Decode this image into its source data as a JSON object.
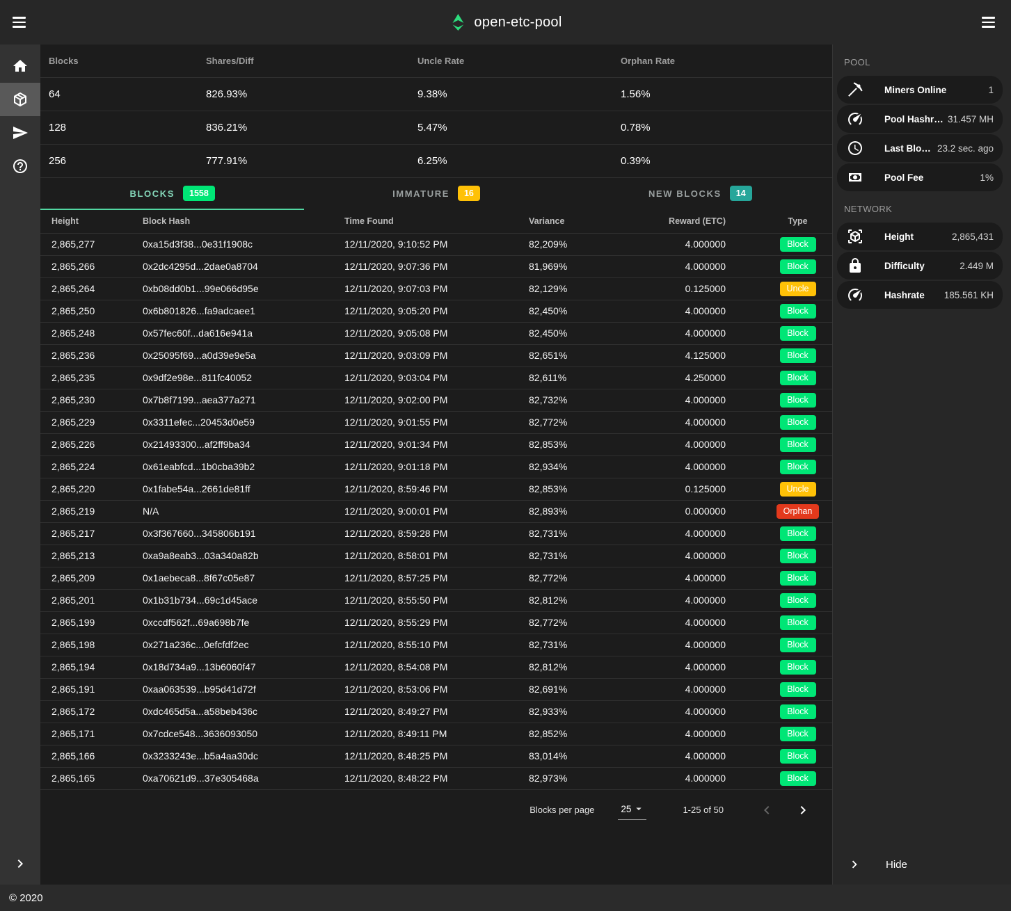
{
  "header": {
    "title": "open-etc-pool"
  },
  "nav_rail": {
    "items": [
      {
        "icon": "home-icon",
        "name": "home",
        "active": false
      },
      {
        "icon": "cube-icon",
        "name": "blocks",
        "active": true
      },
      {
        "icon": "send-icon",
        "name": "payments",
        "active": false
      },
      {
        "icon": "help-icon",
        "name": "help",
        "active": false
      }
    ]
  },
  "stats_table": {
    "headers": [
      "Blocks",
      "Shares/Diff",
      "Uncle Rate",
      "Orphan Rate"
    ],
    "rows": [
      {
        "blocks": "64",
        "shares": "826.93%",
        "uncle": "9.38%",
        "orphan": "1.56%"
      },
      {
        "blocks": "128",
        "shares": "836.21%",
        "uncle": "5.47%",
        "orphan": "0.78%"
      },
      {
        "blocks": "256",
        "shares": "777.91%",
        "uncle": "6.25%",
        "orphan": "0.39%"
      }
    ]
  },
  "tabs": [
    {
      "label": "BLOCKS",
      "count": "1558",
      "active": true,
      "badge_color": "#00e676",
      "name": "blocks"
    },
    {
      "label": "IMMATURE",
      "count": "16",
      "active": false,
      "badge_color": "#ffc107",
      "name": "immature"
    },
    {
      "label": "NEW BLOCKS",
      "count": "14",
      "active": false,
      "badge_color": "#26a69a",
      "name": "new-blocks"
    }
  ],
  "blocks_table": {
    "headers": [
      "Height",
      "Block Hash",
      "Time Found",
      "Variance",
      "Reward (ETC)",
      "Type"
    ],
    "rows": [
      {
        "height": "2,865,277",
        "hash": "0xa15d3f38...0e31f1908c",
        "time": "12/11/2020, 9:10:52 PM",
        "variance": "82,209%",
        "reward": "4.000000",
        "type": "Block"
      },
      {
        "height": "2,865,266",
        "hash": "0x2dc4295d...2dae0a8704",
        "time": "12/11/2020, 9:07:36 PM",
        "variance": "81,969%",
        "reward": "4.000000",
        "type": "Block"
      },
      {
        "height": "2,865,264",
        "hash": "0xb08dd0b1...99e066d95e",
        "time": "12/11/2020, 9:07:03 PM",
        "variance": "82,129%",
        "reward": "0.125000",
        "type": "Uncle"
      },
      {
        "height": "2,865,250",
        "hash": "0x6b801826...fa9adcaee1",
        "time": "12/11/2020, 9:05:20 PM",
        "variance": "82,450%",
        "reward": "4.000000",
        "type": "Block"
      },
      {
        "height": "2,865,248",
        "hash": "0x57fec60f...da616e941a",
        "time": "12/11/2020, 9:05:08 PM",
        "variance": "82,450%",
        "reward": "4.000000",
        "type": "Block"
      },
      {
        "height": "2,865,236",
        "hash": "0x25095f69...a0d39e9e5a",
        "time": "12/11/2020, 9:03:09 PM",
        "variance": "82,651%",
        "reward": "4.125000",
        "type": "Block"
      },
      {
        "height": "2,865,235",
        "hash": "0x9df2e98e...811fc40052",
        "time": "12/11/2020, 9:03:04 PM",
        "variance": "82,611%",
        "reward": "4.250000",
        "type": "Block"
      },
      {
        "height": "2,865,230",
        "hash": "0x7b8f7199...aea377a271",
        "time": "12/11/2020, 9:02:00 PM",
        "variance": "82,732%",
        "reward": "4.000000",
        "type": "Block"
      },
      {
        "height": "2,865,229",
        "hash": "0x3311efec...20453d0e59",
        "time": "12/11/2020, 9:01:55 PM",
        "variance": "82,772%",
        "reward": "4.000000",
        "type": "Block"
      },
      {
        "height": "2,865,226",
        "hash": "0x21493300...af2ff9ba34",
        "time": "12/11/2020, 9:01:34 PM",
        "variance": "82,853%",
        "reward": "4.000000",
        "type": "Block"
      },
      {
        "height": "2,865,224",
        "hash": "0x61eabfcd...1b0cba39b2",
        "time": "12/11/2020, 9:01:18 PM",
        "variance": "82,934%",
        "reward": "4.000000",
        "type": "Block"
      },
      {
        "height": "2,865,220",
        "hash": "0x1fabe54a...2661de81ff",
        "time": "12/11/2020, 8:59:46 PM",
        "variance": "82,853%",
        "reward": "0.125000",
        "type": "Uncle"
      },
      {
        "height": "2,865,219",
        "hash": "N/A",
        "time": "12/11/2020, 9:00:01 PM",
        "variance": "82,893%",
        "reward": "0.000000",
        "type": "Orphan"
      },
      {
        "height": "2,865,217",
        "hash": "0x3f367660...345806b191",
        "time": "12/11/2020, 8:59:28 PM",
        "variance": "82,731%",
        "reward": "4.000000",
        "type": "Block"
      },
      {
        "height": "2,865,213",
        "hash": "0xa9a8eab3...03a340a82b",
        "time": "12/11/2020, 8:58:01 PM",
        "variance": "82,731%",
        "reward": "4.000000",
        "type": "Block"
      },
      {
        "height": "2,865,209",
        "hash": "0x1aebeca8...8f67c05e87",
        "time": "12/11/2020, 8:57:25 PM",
        "variance": "82,772%",
        "reward": "4.000000",
        "type": "Block"
      },
      {
        "height": "2,865,201",
        "hash": "0x1b31b734...69c1d45ace",
        "time": "12/11/2020, 8:55:50 PM",
        "variance": "82,812%",
        "reward": "4.000000",
        "type": "Block"
      },
      {
        "height": "2,865,199",
        "hash": "0xccdf562f...69a698b7fe",
        "time": "12/11/2020, 8:55:29 PM",
        "variance": "82,772%",
        "reward": "4.000000",
        "type": "Block"
      },
      {
        "height": "2,865,198",
        "hash": "0x271a236c...0efcfdf2ec",
        "time": "12/11/2020, 8:55:10 PM",
        "variance": "82,731%",
        "reward": "4.000000",
        "type": "Block"
      },
      {
        "height": "2,865,194",
        "hash": "0x18d734a9...13b6060f47",
        "time": "12/11/2020, 8:54:08 PM",
        "variance": "82,812%",
        "reward": "4.000000",
        "type": "Block"
      },
      {
        "height": "2,865,191",
        "hash": "0xaa063539...b95d41d72f",
        "time": "12/11/2020, 8:53:06 PM",
        "variance": "82,691%",
        "reward": "4.000000",
        "type": "Block"
      },
      {
        "height": "2,865,172",
        "hash": "0xdc465d5a...a58beb436c",
        "time": "12/11/2020, 8:49:27 PM",
        "variance": "82,933%",
        "reward": "4.000000",
        "type": "Block"
      },
      {
        "height": "2,865,171",
        "hash": "0x7cdce548...3636093050",
        "time": "12/11/2020, 8:49:11 PM",
        "variance": "82,852%",
        "reward": "4.000000",
        "type": "Block"
      },
      {
        "height": "2,865,166",
        "hash": "0x3233243e...b5a4aa30dc",
        "time": "12/11/2020, 8:48:25 PM",
        "variance": "83,014%",
        "reward": "4.000000",
        "type": "Block"
      },
      {
        "height": "2,865,165",
        "hash": "0xa70621d9...37e305468a",
        "time": "12/11/2020, 8:48:22 PM",
        "variance": "82,973%",
        "reward": "4.000000",
        "type": "Block"
      }
    ]
  },
  "pagination": {
    "label": "Blocks per page",
    "per_page": "25",
    "range": "1-25 of 50"
  },
  "pool_panel": {
    "title": "POOL",
    "items": [
      {
        "icon": "pickaxe-icon",
        "label": "Miners Online",
        "value": "1",
        "name": "miners-online"
      },
      {
        "icon": "gauge-icon",
        "label": "Pool Hashrate",
        "value": "31.457 MH",
        "name": "pool-hashrate"
      },
      {
        "icon": "clock-icon",
        "label": "Last Block Found",
        "value": "23.2 sec. ago",
        "name": "last-block-found"
      },
      {
        "icon": "cash-icon",
        "label": "Pool Fee",
        "value": "1%",
        "name": "pool-fee"
      }
    ]
  },
  "network_panel": {
    "title": "NETWORK",
    "items": [
      {
        "icon": "cube-scan-icon",
        "label": "Height",
        "value": "2,865,431",
        "name": "height"
      },
      {
        "icon": "lock-icon",
        "label": "Difficulty",
        "value": "2.449 M",
        "name": "difficulty"
      },
      {
        "icon": "gauge-icon",
        "label": "Hashrate",
        "value": "185.561 KH",
        "name": "hashrate"
      }
    ]
  },
  "sidebar_footer": {
    "label": "Hide"
  },
  "footer": {
    "copyright": "© 2020"
  },
  "colors": {
    "bg-main": "#1c1c1c",
    "bg-topbar": "#272727",
    "bg-rail": "#333333",
    "bg-rail-active": "#595959",
    "bg-sidebar": "#272727",
    "bg-pill": "#1b1b1b",
    "bg-footer": "#2b2b2b",
    "divider": "rgba(255,255,255,0.09)",
    "accent": "#52d7a2",
    "accent-text": "#85d8ba",
    "logo": "#2ddc7d",
    "c-block": "#00e676",
    "c-uncle": "#ffc107",
    "c-orphan": "#e3391c"
  }
}
